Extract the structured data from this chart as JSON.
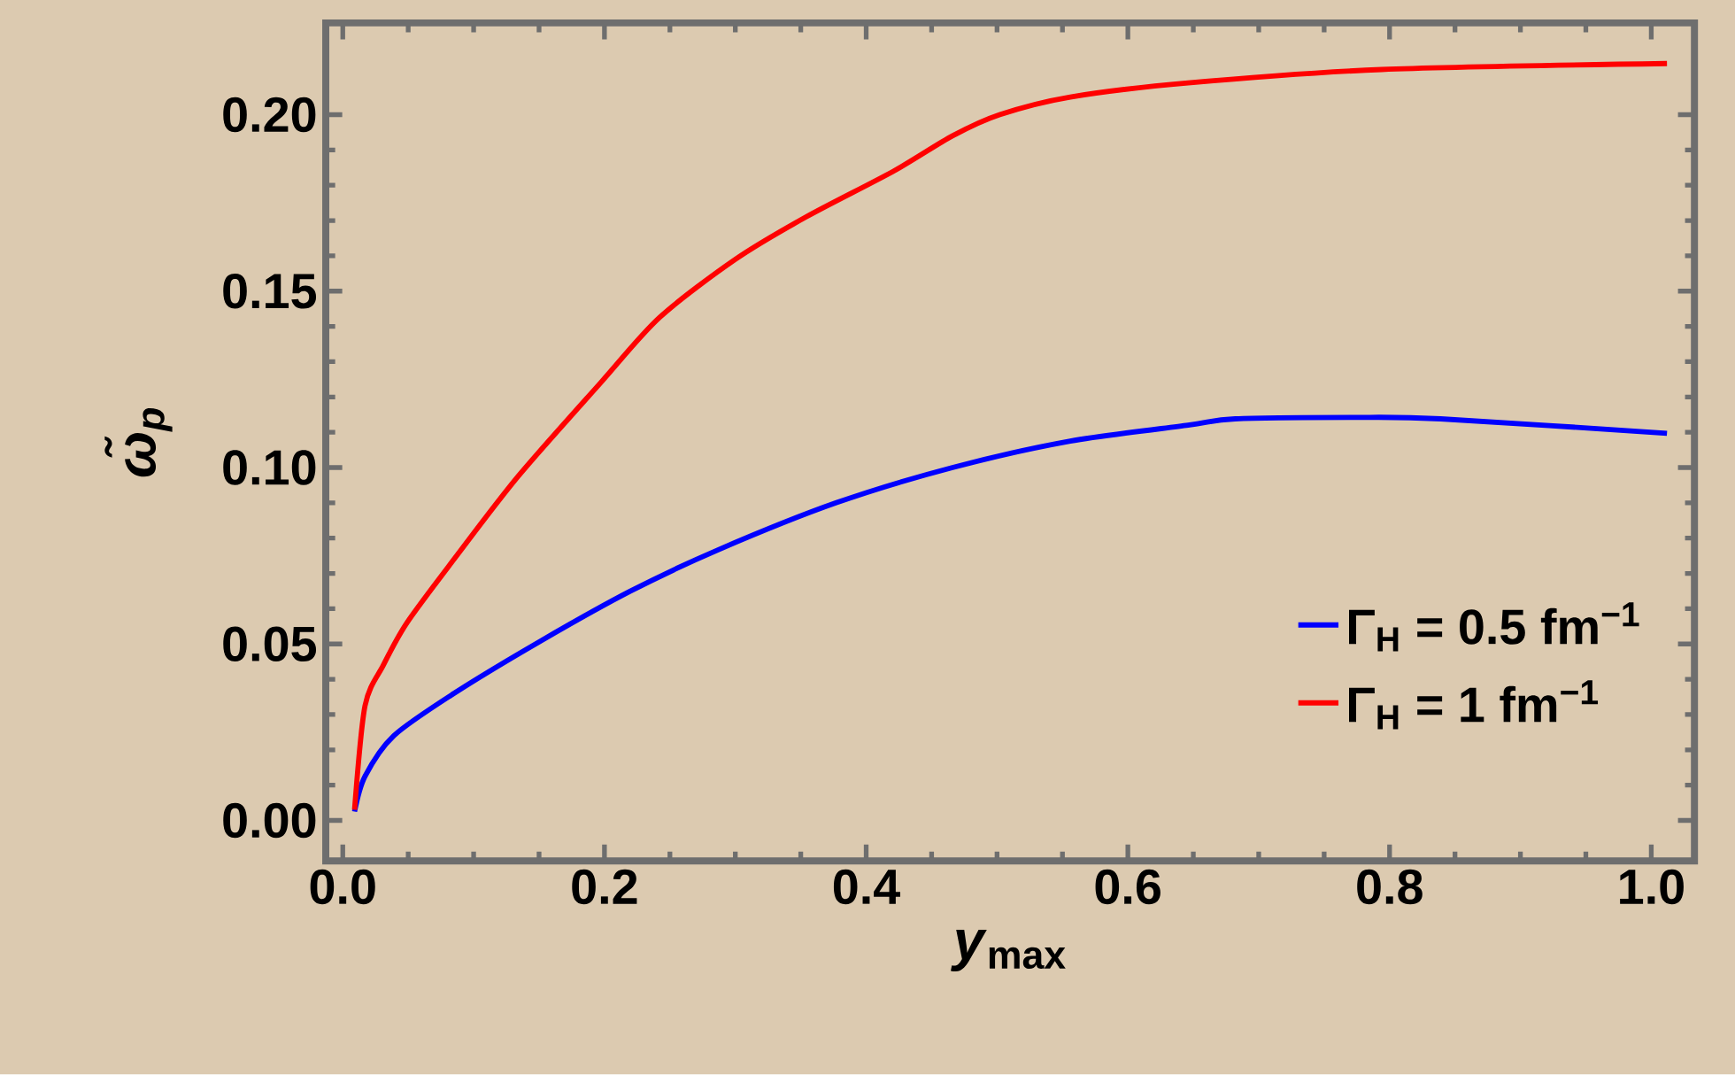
{
  "chart_data": {
    "type": "line",
    "xlabel": "*y*$_{max}$",
    "ylabel": "ω̃$_{p}$",
    "xlim": [
      -0.013,
      1.033
    ],
    "ylim": [
      -0.0115,
      0.226
    ],
    "xticks": [
      {
        "value": 0,
        "label": "0.0"
      },
      0.2,
      0.4,
      0.6,
      0.8,
      {
        "value": 1,
        "label": "1.0"
      }
    ],
    "yticks": [
      {
        "value": 0,
        "label": "0.00"
      },
      0.05,
      {
        "value": 0.1,
        "label": "0.10"
      },
      0.15,
      {
        "value": 0.2,
        "label": "0.20"
      }
    ],
    "grid": false,
    "legend": "bottom right",
    "marker": "none",
    "line_style": "solid",
    "series": [
      {
        "name": "Γ$_{H}$ = 0.5 fm$^{−1}$",
        "color": "#0000ff",
        "x": [
          0.009,
          0.017,
          0.039,
          0.085,
          0.152,
          0.22,
          0.287,
          0.377,
          0.466,
          0.556,
          0.646,
          0.682,
          0.772,
          0.839,
          1.012
        ],
        "values": [
          0.0025,
          0.0125,
          0.024,
          0.036,
          0.051,
          0.065,
          0.0767,
          0.09,
          0.1,
          0.1075,
          0.112,
          0.1138,
          0.1142,
          0.1138,
          0.1097
        ]
      },
      {
        "name": "Γ$_{H}$ = 1 fm$^{−1}$",
        "color": "#ff0000",
        "x": [
          0.009,
          0.017,
          0.031,
          0.049,
          0.085,
          0.134,
          0.197,
          0.242,
          0.3,
          0.354,
          0.421,
          0.466,
          0.502,
          0.556,
          0.646,
          0.794,
          1.012
        ],
        "values": [
          0.003,
          0.0325,
          0.044,
          0.056,
          0.074,
          0.0975,
          0.124,
          0.1425,
          0.159,
          0.171,
          0.184,
          0.194,
          0.2,
          0.205,
          0.209,
          0.2128,
          0.2145
        ]
      }
    ]
  }
}
